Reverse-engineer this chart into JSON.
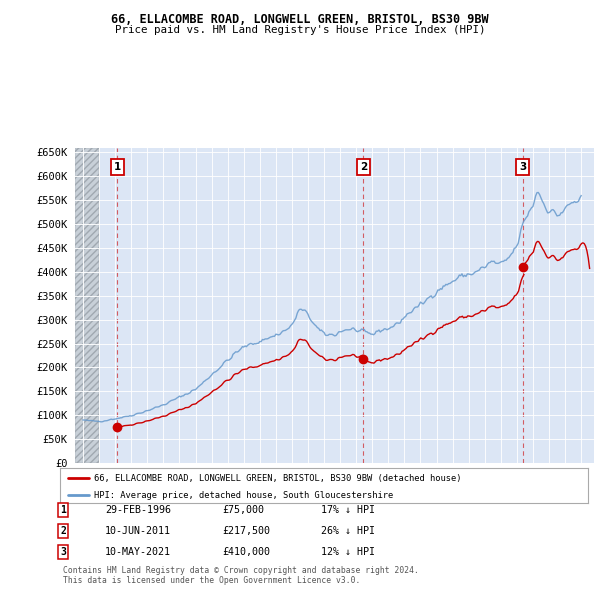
{
  "title1": "66, ELLACOMBE ROAD, LONGWELL GREEN, BRISTOL, BS30 9BW",
  "title2": "Price paid vs. HM Land Registry's House Price Index (HPI)",
  "red_line_label": "66, ELLACOMBE ROAD, LONGWELL GREEN, BRISTOL, BS30 9BW (detached house)",
  "blue_line_label": "HPI: Average price, detached house, South Gloucestershire",
  "footer": "Contains HM Land Registry data © Crown copyright and database right 2024.\nThis data is licensed under the Open Government Licence v3.0.",
  "transactions": [
    {
      "num": 1,
      "date": "29-FEB-1996",
      "price": 75000,
      "pct": "17% ↓ HPI",
      "year": 1996.12
    },
    {
      "num": 2,
      "date": "10-JUN-2011",
      "price": 217500,
      "pct": "26% ↓ HPI",
      "year": 2011.44
    },
    {
      "num": 3,
      "date": "10-MAY-2021",
      "price": 410000,
      "pct": "12% ↓ HPI",
      "year": 2021.36
    }
  ],
  "ylim": [
    0,
    660000
  ],
  "yticks": [
    0,
    50000,
    100000,
    150000,
    200000,
    250000,
    300000,
    350000,
    400000,
    450000,
    500000,
    550000,
    600000,
    650000
  ],
  "xlim_start": 1993.5,
  "xlim_end": 2025.8,
  "xticks": [
    1994,
    1995,
    1996,
    1997,
    1998,
    1999,
    2000,
    2001,
    2002,
    2003,
    2004,
    2005,
    2006,
    2007,
    2008,
    2009,
    2010,
    2011,
    2012,
    2013,
    2014,
    2015,
    2016,
    2017,
    2018,
    2019,
    2020,
    2021,
    2022,
    2023,
    2024,
    2025
  ],
  "hpi_base_year": 1994.0,
  "hpi_base_value": 90000,
  "red_color": "#cc0000",
  "blue_color": "#6699cc",
  "bg_color": "#dce6f5",
  "hatch_color": "#c8c8c8"
}
